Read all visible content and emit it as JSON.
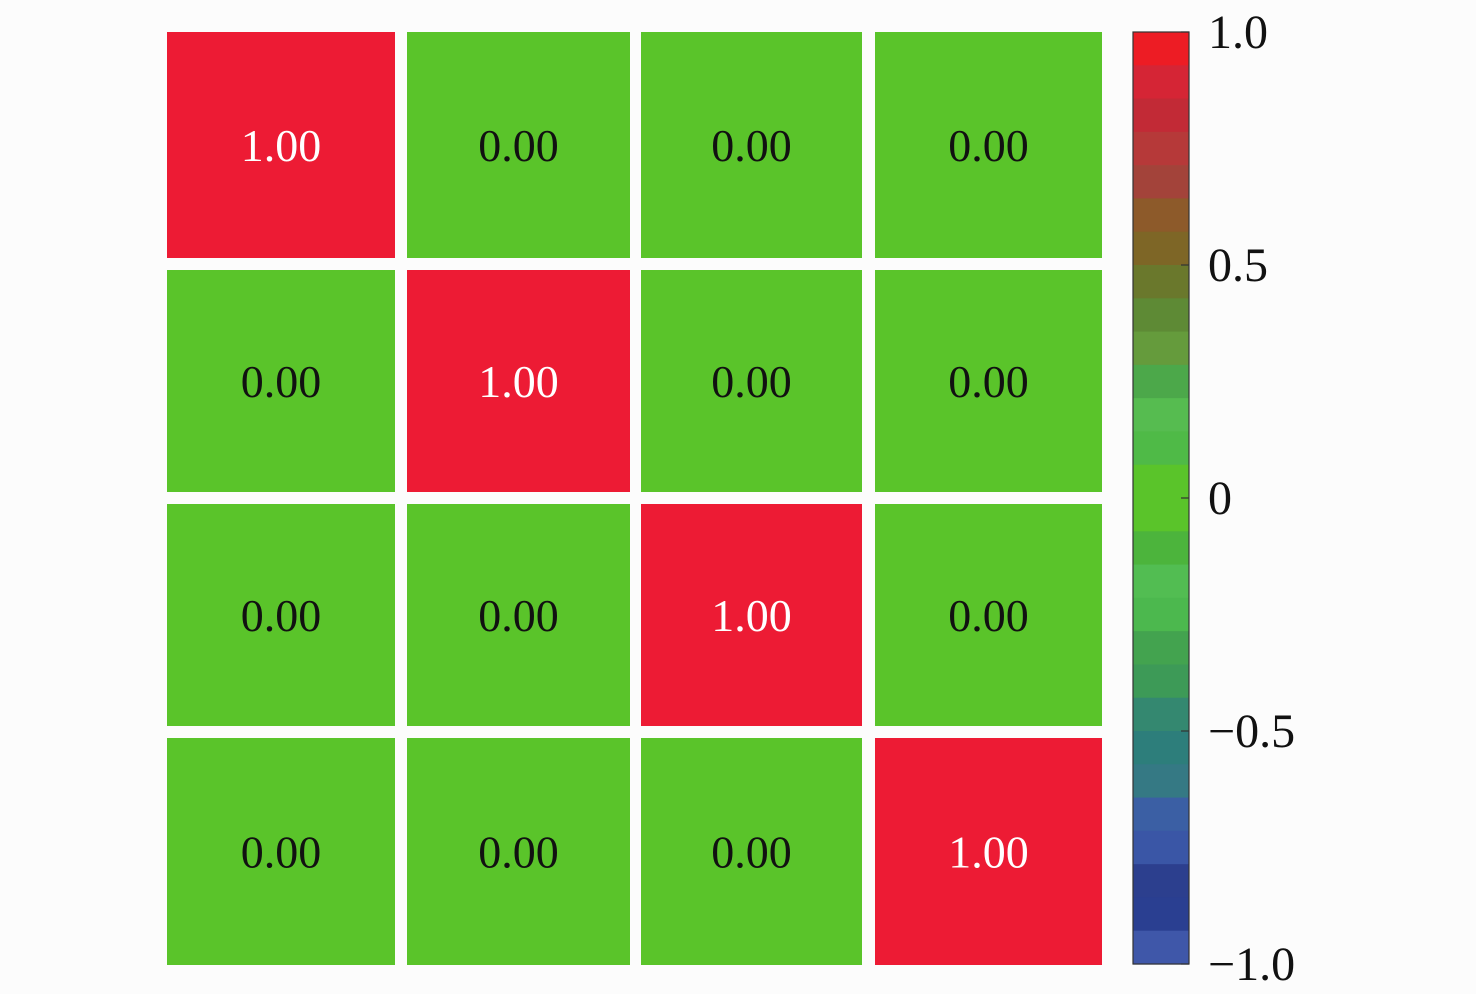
{
  "chart_data": {
    "type": "heatmap",
    "title": "",
    "xlabel": "",
    "ylabel": "",
    "rows": 4,
    "cols": 4,
    "matrix": [
      [
        1.0,
        0.0,
        0.0,
        0.0
      ],
      [
        0.0,
        1.0,
        0.0,
        0.0
      ],
      [
        0.0,
        0.0,
        1.0,
        0.0
      ],
      [
        0.0,
        0.0,
        0.0,
        1.0
      ]
    ],
    "cell_labels": [
      [
        "1.00",
        "0.00",
        "0.00",
        "0.00"
      ],
      [
        "0.00",
        "1.00",
        "0.00",
        "0.00"
      ],
      [
        "0.00",
        "0.00",
        "1.00",
        "0.00"
      ],
      [
        "0.00",
        "0.00",
        "0.00",
        "1.00"
      ]
    ],
    "cell_colors": {
      "high": "#ed1b34",
      "zero": "#5ac42a"
    },
    "label_colors": {
      "high": "#ffffff",
      "zero": "#111111"
    },
    "colorbar": {
      "range": [
        -1.0,
        1.0
      ],
      "ticks": [
        1.0,
        0.5,
        0,
        -0.5,
        -1.0
      ],
      "tick_labels": [
        "1.0",
        "0.5",
        "0",
        "−0.5",
        "−1.0"
      ],
      "bands": [
        "#ed1c24",
        "#d52535",
        "#c22a36",
        "#b63939",
        "#a3433a",
        "#8d5a2a",
        "#7e6626",
        "#6a782c",
        "#5e8a35",
        "#659b3c",
        "#4ca84a",
        "#56bc50",
        "#4fba47",
        "#5ac42a",
        "#5ac42a",
        "#4cb43c",
        "#52bd52",
        "#4cb84e",
        "#43a34f",
        "#3d9a57",
        "#348870",
        "#2d7e7b",
        "#357984",
        "#3b5fa4",
        "#3a56a6",
        "#2c3f8e",
        "#2a3f91",
        "#3f57a9"
      ]
    }
  }
}
